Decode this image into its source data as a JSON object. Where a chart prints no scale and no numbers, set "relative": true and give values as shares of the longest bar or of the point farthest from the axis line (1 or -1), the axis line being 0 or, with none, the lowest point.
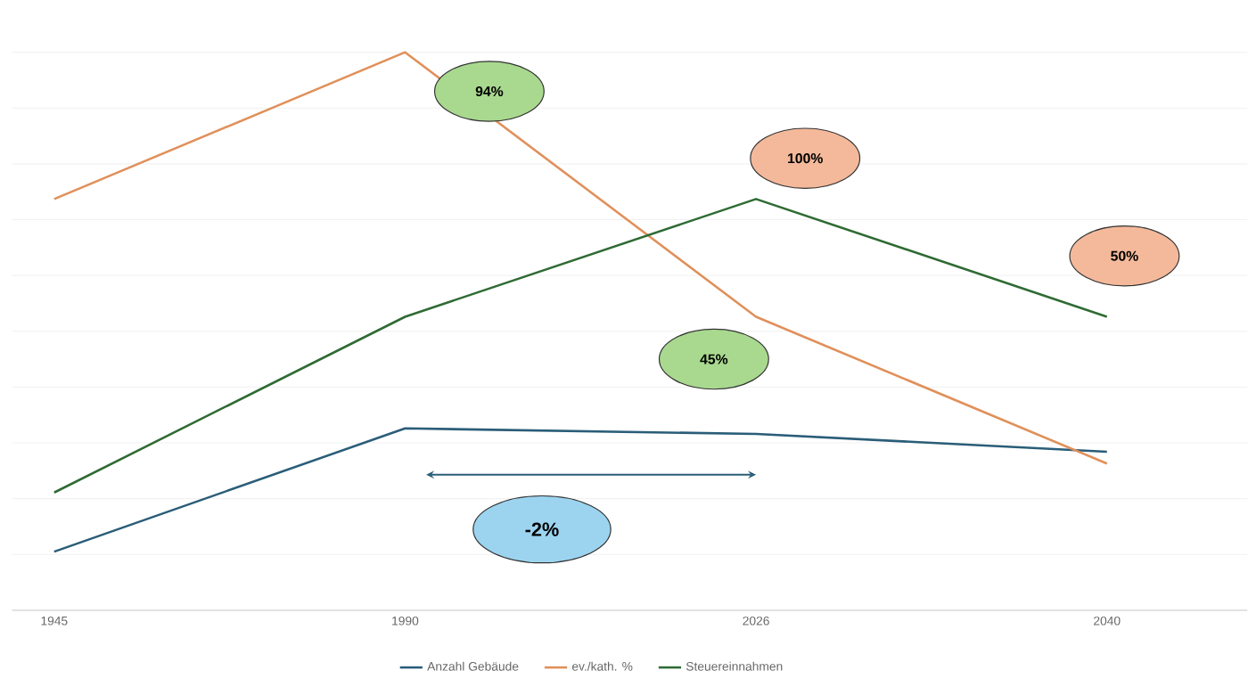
{
  "chart_data": {
    "type": "line",
    "relative": true,
    "categories": [
      "1945",
      "1990",
      "2026",
      "2040"
    ],
    "series": [
      {
        "name": "Anzahl Gebäude",
        "color": "#2a5d78",
        "values": [
          0.105,
          0.326,
          0.316,
          0.284
        ]
      },
      {
        "name": "ev./kath. %",
        "color": "#e0905a",
        "values": [
          0.737,
          1,
          0.526,
          0.263
        ]
      },
      {
        "name": "Steuereinnahmen",
        "color": "#2f6b34",
        "values": [
          0.211,
          0.526,
          0.737,
          0.526
        ]
      }
    ],
    "annotations": [
      "94%",
      "100%",
      "50%",
      "45%",
      "-2%"
    ],
    "grid": "y",
    "legend": "bottom",
    "marker": "none",
    "line_style": "solid"
  }
}
